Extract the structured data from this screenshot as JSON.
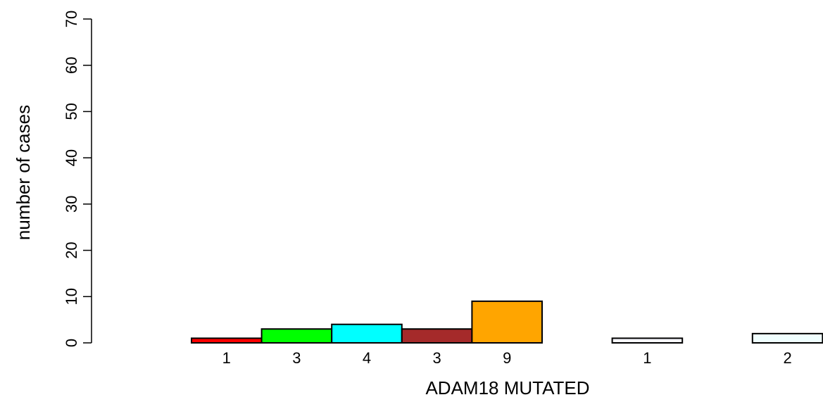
{
  "chart_data": {
    "type": "bar",
    "title": "",
    "xlabel": "ADAM18 MUTATED",
    "ylabel": "number of cases",
    "ylim": [
      0,
      70
    ],
    "y_ticks": [
      0,
      10,
      20,
      30,
      40,
      50,
      60,
      70
    ],
    "grid": false,
    "legend": "none",
    "values": [
      1,
      3,
      4,
      3,
      9,
      0,
      1,
      0,
      2
    ],
    "bar_labels": [
      "1",
      "3",
      "4",
      "3",
      "9",
      "",
      "1",
      "",
      "2"
    ],
    "colors": [
      "#ff0000",
      "#00ff00",
      "#00ffff",
      "#a52a2a",
      "#ffa500",
      "#ffffff",
      "#f8f8ff",
      "#ffffff",
      "#f0ffff"
    ]
  }
}
